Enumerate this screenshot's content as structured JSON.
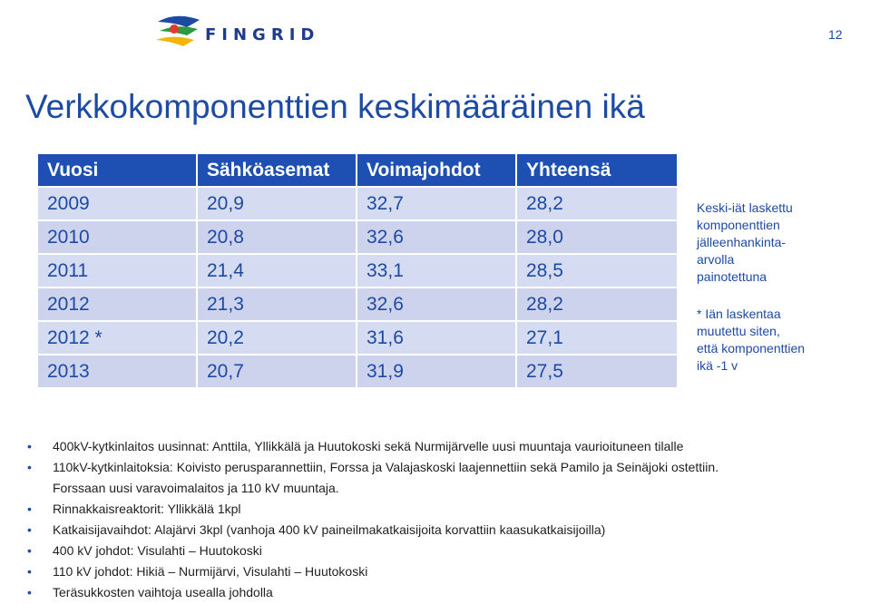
{
  "header": {
    "logo_text": "FINGRID",
    "page_number": "12"
  },
  "title": "Verkkokomponenttien keskimääräinen ikä",
  "table": {
    "headers": [
      "Vuosi",
      "Sähköasemat",
      "Voimajohdot",
      "Yhteensä"
    ],
    "rows": [
      [
        "2009",
        "20,9",
        "32,7",
        "28,2"
      ],
      [
        "2010",
        "20,8",
        "32,6",
        "28,0"
      ],
      [
        "2011",
        "21,4",
        "33,1",
        "28,5"
      ],
      [
        "2012",
        "21,3",
        "32,6",
        "28,2"
      ],
      [
        "2012 *",
        "20,2",
        "31,6",
        "27,1"
      ],
      [
        "2013",
        "20,7",
        "31,9",
        "27,5"
      ]
    ]
  },
  "side_notes": {
    "note1": [
      "Keski-iät laskettu",
      "komponenttien",
      "jälleenhankinta-",
      "arvolla",
      "painotettuna"
    ],
    "note2": [
      "* Iän laskentaa",
      "muutettu siten,",
      "että komponenttien",
      "ikä -1 v"
    ]
  },
  "bullets": [
    {
      "text": "400kV-kytkinlaitos uusinnat: Anttila, Yllikkälä ja Huutokoski sekä Nurmijärvelle uusi muuntaja vaurioituneen tilalle"
    },
    {
      "text": "110kV-kytkinlaitoksia: Koivisto perusparannettiin, Forssa ja Valajaskoski laajennettiin sekä Pamilo ja Seinäjoki ostettiin.",
      "text2": "Forssaan uusi varavoimalaitos ja 110 kV muuntaja."
    },
    {
      "text": "Rinnakkaisreaktorit: Yllikkälä 1kpl"
    },
    {
      "text": "Katkaisijavaihdot: Alajärvi 3kpl (vanhoja 400 kV paineilmakatkaisijoita korvattiin kaasukatkaisijoilla)"
    },
    {
      "text": "400 kV johdot: Visulahti – Huutokoski"
    },
    {
      "text": "110 kV johdot: Hikiä – Nurmijärvi, Visulahti – Huutokoski"
    },
    {
      "text": "Teräsukkosten vaihtoja usealla johdolla"
    }
  ]
}
